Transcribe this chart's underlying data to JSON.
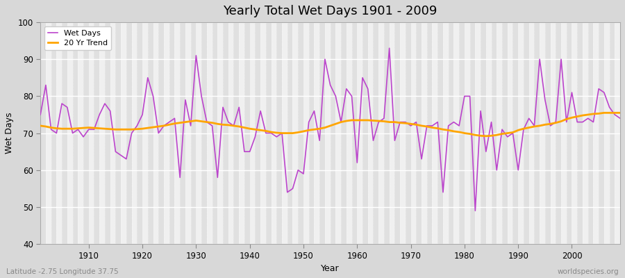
{
  "title": "Yearly Total Wet Days 1901 - 2009",
  "xlabel": "Year",
  "ylabel": "Wet Days",
  "subtitle": "Latitude -2.75 Longitude 37.75",
  "watermark": "worldspecies.org",
  "ylim": [
    40,
    100
  ],
  "yticks": [
    40,
    50,
    60,
    70,
    80,
    90,
    100
  ],
  "line_color": "#BB44CC",
  "trend_color": "#FFA500",
  "fig_bg_color": "#D8D8D8",
  "plot_bg_color": "#F0F0F0",
  "band_color_light": "#EBEBEB",
  "band_color_dark": "#E0E0E0",
  "years": [
    1901,
    1902,
    1903,
    1904,
    1905,
    1906,
    1907,
    1908,
    1909,
    1910,
    1911,
    1912,
    1913,
    1914,
    1915,
    1916,
    1917,
    1918,
    1919,
    1920,
    1921,
    1922,
    1923,
    1924,
    1925,
    1926,
    1927,
    1928,
    1929,
    1930,
    1931,
    1932,
    1933,
    1934,
    1935,
    1936,
    1937,
    1938,
    1939,
    1940,
    1941,
    1942,
    1943,
    1944,
    1945,
    1946,
    1947,
    1948,
    1949,
    1950,
    1951,
    1952,
    1953,
    1954,
    1955,
    1956,
    1957,
    1958,
    1959,
    1960,
    1961,
    1962,
    1963,
    1964,
    1965,
    1966,
    1967,
    1968,
    1969,
    1970,
    1971,
    1972,
    1973,
    1974,
    1975,
    1976,
    1977,
    1978,
    1979,
    1980,
    1981,
    1982,
    1983,
    1984,
    1985,
    1986,
    1987,
    1988,
    1989,
    1990,
    1991,
    1992,
    1993,
    1994,
    1995,
    1996,
    1997,
    1998,
    1999,
    2000,
    2001,
    2002,
    2003,
    2004,
    2005,
    2006,
    2007,
    2008,
    2009
  ],
  "wet_days": [
    75,
    83,
    71,
    70,
    78,
    77,
    70,
    71,
    69,
    71,
    71,
    75,
    78,
    76,
    65,
    64,
    63,
    70,
    72,
    75,
    85,
    80,
    70,
    72,
    73,
    74,
    58,
    79,
    72,
    91,
    80,
    73,
    72,
    58,
    77,
    73,
    72,
    77,
    65,
    65,
    69,
    76,
    70,
    70,
    69,
    70,
    54,
    55,
    60,
    59,
    73,
    76,
    68,
    90,
    83,
    80,
    73,
    82,
    80,
    62,
    85,
    82,
    68,
    73,
    74,
    93,
    68,
    73,
    73,
    72,
    73,
    63,
    72,
    72,
    73,
    54,
    72,
    73,
    72,
    80,
    80,
    49,
    76,
    65,
    73,
    60,
    71,
    69,
    70,
    60,
    71,
    74,
    72,
    90,
    79,
    72,
    73,
    90,
    73,
    81,
    73,
    73,
    74,
    73,
    82,
    81,
    77,
    75,
    74
  ],
  "trend_values": [
    72.0,
    71.8,
    71.5,
    71.3,
    71.2,
    71.2,
    71.2,
    71.3,
    71.4,
    71.5,
    71.4,
    71.3,
    71.2,
    71.1,
    71.0,
    71.0,
    71.0,
    71.0,
    71.1,
    71.2,
    71.4,
    71.6,
    71.8,
    72.0,
    72.3,
    72.6,
    72.8,
    73.0,
    73.2,
    73.4,
    73.2,
    73.0,
    72.8,
    72.5,
    72.3,
    72.2,
    72.0,
    71.8,
    71.5,
    71.2,
    71.0,
    70.8,
    70.6,
    70.3,
    70.1,
    70.0,
    70.0,
    70.0,
    70.2,
    70.5,
    70.8,
    71.0,
    71.2,
    71.5,
    72.0,
    72.5,
    73.0,
    73.3,
    73.5,
    73.5,
    73.5,
    73.5,
    73.4,
    73.3,
    73.2,
    73.0,
    73.0,
    72.8,
    72.7,
    72.5,
    72.3,
    72.0,
    71.8,
    71.5,
    71.3,
    71.0,
    70.8,
    70.5,
    70.3,
    70.0,
    69.8,
    69.5,
    69.3,
    69.2,
    69.3,
    69.5,
    69.8,
    70.0,
    70.2,
    70.8,
    71.2,
    71.5,
    71.8,
    72.0,
    72.3,
    72.5,
    72.8,
    73.2,
    73.8,
    74.2,
    74.5,
    74.8,
    75.0,
    75.2,
    75.3,
    75.5,
    75.5,
    75.5,
    75.5
  ]
}
